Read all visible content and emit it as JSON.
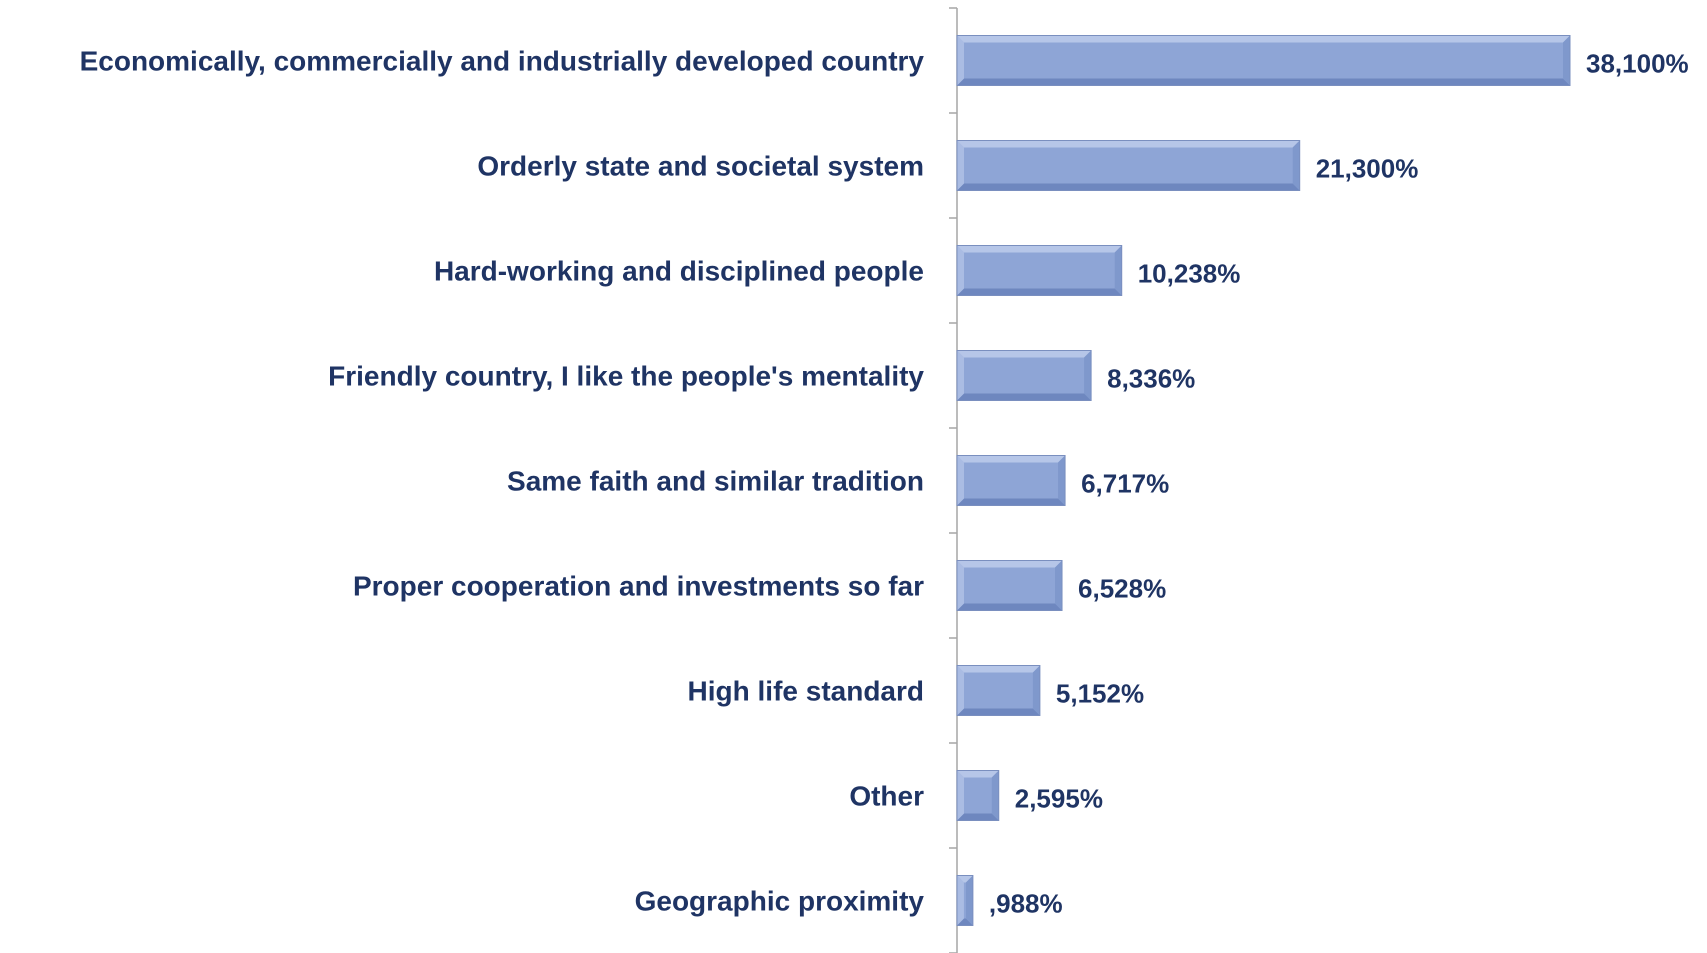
{
  "colors": {
    "bar_face": "#8ea5d6",
    "bar_top": "#b6c6e8",
    "bar_bottom": "#6e87bf",
    "bar_end": "#7f98cc",
    "bar_outline": "#7a8fbf",
    "text": "#1f3464",
    "axis": "#a6a6a6"
  },
  "chart_data": {
    "type": "bar",
    "orientation": "horizontal",
    "categories": [
      "Economically, commercially and industrially developed country",
      "Orderly state and societal system",
      "Hard-working and disciplined people",
      "Friendly country, I like the people's mentality",
      "Same faith and similar tradition",
      "Proper cooperation and investments so far",
      "High life standard",
      "Other",
      "Geographic proximity"
    ],
    "values": [
      38.1,
      21.3,
      10.238,
      8.336,
      6.717,
      6.528,
      5.152,
      2.595,
      0.988
    ],
    "data_labels": [
      "38,100%",
      "21,300%",
      "10,238%",
      "8,336%",
      "6,717%",
      "6,528%",
      "5,152%",
      "2,595%",
      ",988%"
    ],
    "title": "",
    "xlabel": "",
    "ylabel": "",
    "xlim": [
      0,
      38.1
    ],
    "grid": false,
    "legend": "none"
  }
}
